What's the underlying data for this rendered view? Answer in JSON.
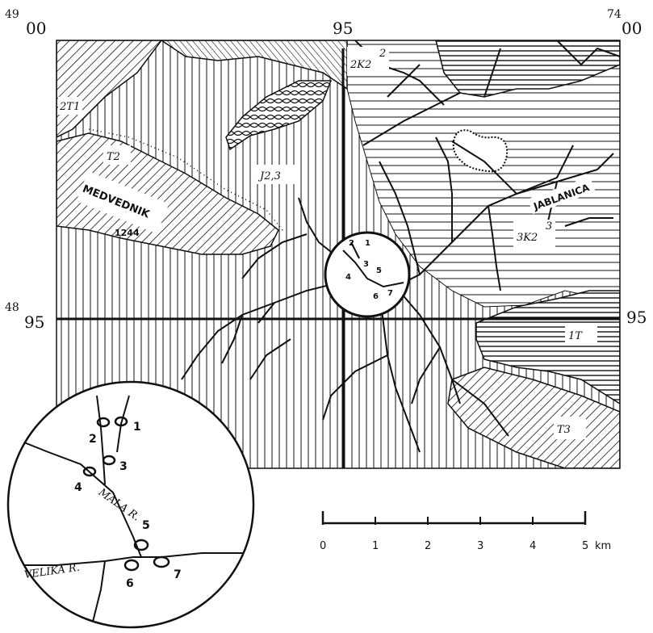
{
  "grid": {
    "top_left_super": "49",
    "top_left": "00",
    "top_mid": "95",
    "top_right_super": "74",
    "top_right": "00",
    "left_mid_super": "48",
    "left_mid": "95",
    "right_mid": "95"
  },
  "places": {
    "medvednik": "MEDVEDNIK",
    "medvednik_elev": "1244",
    "jablanica": "JABLANICA"
  },
  "units": {
    "t1": "2T1",
    "t2": "T2",
    "j23": "J2,3",
    "k2_2": "2K2",
    "k2_3": "3K2",
    "t3": "T3",
    "t1b": "1T",
    "k2_top_sup": "2",
    "k2_3_sup": "3"
  },
  "sites": [
    "1",
    "2",
    "3",
    "4",
    "5",
    "6",
    "7"
  ],
  "inset": {
    "sites": [
      "1",
      "2",
      "3",
      "4",
      "5",
      "6",
      "7"
    ],
    "mala": "MALA R.",
    "velika": "VELIKA R."
  },
  "scale": {
    "ticks": [
      "0",
      "1",
      "2",
      "3",
      "4",
      "5"
    ],
    "unit": "km"
  }
}
